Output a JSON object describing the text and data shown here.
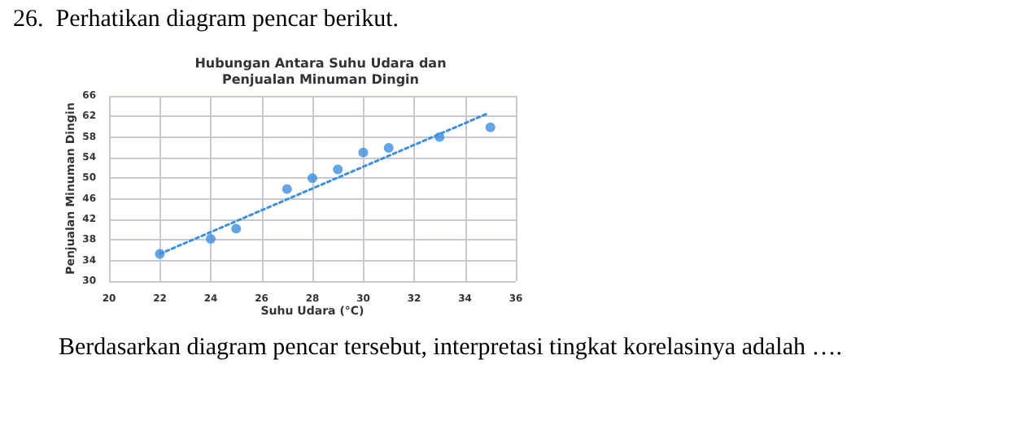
{
  "chart_data": {
    "type": "scatter",
    "title": "Hubungan Antara Suhu Udara dan\nPenjualan Minuman Dingin",
    "xlabel": "Suhu Udara (°C)",
    "ylabel": "Penjualan Minuman Dingin",
    "annotations": [
      "26.  Perhatikan diagram pencar berikut.",
      "Berdasarkan diagram pencar tersebut, interpretasi tingkat korelasinya adalah …."
    ],
    "series": [
      {
        "color": "#3d8fe0",
        "x": [
          22,
          24,
          25,
          27,
          28,
          29,
          30,
          31,
          33,
          35
        ],
        "values": [
          35.3,
          38.2,
          40.2,
          47.9,
          50,
          51.7,
          55,
          55.9,
          58,
          59.9
        ]
      },
      {
        "type": "line",
        "color": "#3d8fe0",
        "line_style": "dotted",
        "marker": "none",
        "x": [
          22,
          34.9
        ],
        "values": [
          35.3,
          62.6
        ]
      }
    ],
    "marker": "circle",
    "xlim": [
      20,
      36
    ],
    "xticks": [
      20,
      22,
      24,
      26,
      28,
      30,
      32,
      34,
      36
    ],
    "ylim": [
      30,
      66
    ],
    "yticks": [
      30,
      34,
      38,
      42,
      46,
      50,
      54,
      58,
      62,
      66
    ],
    "grid": true
  }
}
